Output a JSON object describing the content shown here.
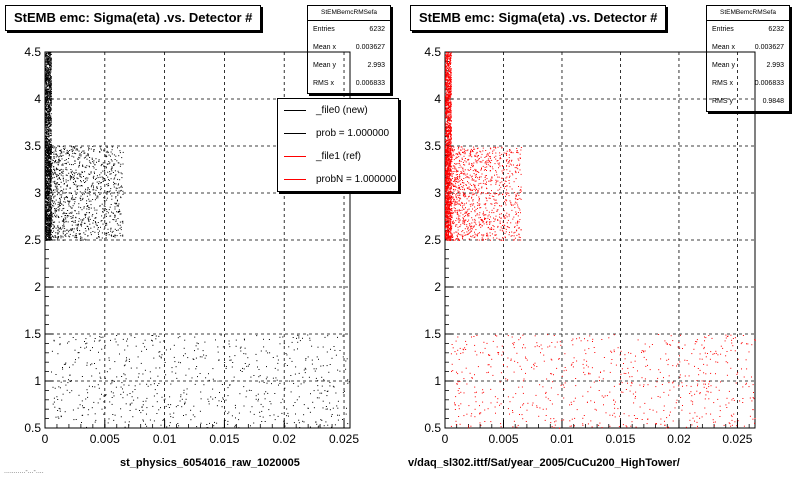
{
  "chart_data": [
    {
      "type": "scatter",
      "title": "StEMB emc: Sigma(eta) .vs. Detector #",
      "xlabel": "st_physics_6054016_raw_1020005",
      "ylabel": "",
      "xlim": [
        0,
        0.0255
      ],
      "ylim": [
        0.5,
        4.5
      ],
      "x_ticks": [
        "0",
        "0.005",
        "0.01",
        "0.015",
        "0.02",
        "0.025"
      ],
      "y_ticks": [
        "0.5",
        "1",
        "1.5",
        "2",
        "2.5",
        "3",
        "3.5",
        "4",
        "4.5"
      ],
      "grid": true,
      "marker_color": "#000000",
      "regions": [
        {
          "x_range": [
            0,
            0.0005
          ],
          "y_range": [
            2.5,
            4.5
          ],
          "density": "very high"
        },
        {
          "x_range": [
            0,
            0.0065
          ],
          "y_range": [
            2.5,
            3.5
          ],
          "density": "high"
        },
        {
          "x_range": [
            0.0005,
            0.0255
          ],
          "y_range": [
            0.5,
            1.5
          ],
          "density": "sparse"
        }
      ],
      "stats": {
        "title": "StEMBemcRMSefa",
        "rows": [
          {
            "label": "Entries",
            "value": "6232"
          },
          {
            "label": "Mean x",
            "value": "0.003627"
          },
          {
            "label": "Mean y",
            "value": "2.993"
          },
          {
            "label": "RMS x",
            "value": "0.006833"
          }
        ]
      },
      "legend": [
        {
          "label": "_file0 (new)",
          "color": "#000000"
        },
        {
          "label": "prob = 1.000000",
          "color": "#000000"
        },
        {
          "label": "_file1 (ref)",
          "color": "#ff0000"
        },
        {
          "label": "probN = 1.000000",
          "color": "#ff0000"
        }
      ]
    },
    {
      "type": "scatter",
      "title": "StEMB emc: Sigma(eta) .vs. Detector #",
      "xlabel": "v/daq_sl302.ittf/Sat/year_2005/CuCu200_HighTower/",
      "ylabel": "",
      "xlim": [
        0,
        0.0265
      ],
      "ylim": [
        0.5,
        4.5
      ],
      "x_ticks": [
        "0",
        "0.005",
        "0.01",
        "0.015",
        "0.02",
        "0.025"
      ],
      "y_ticks": [
        "0.5",
        "1",
        "1.5",
        "2",
        "2.5",
        "3",
        "3.5",
        "4",
        "4.5"
      ],
      "grid": true,
      "marker_color": "#ff0000",
      "regions": [
        {
          "x_range": [
            0,
            0.0005
          ],
          "y_range": [
            2.5,
            4.5
          ],
          "density": "very high"
        },
        {
          "x_range": [
            0,
            0.0065
          ],
          "y_range": [
            2.5,
            3.5
          ],
          "density": "high"
        },
        {
          "x_range": [
            0.0005,
            0.0265
          ],
          "y_range": [
            0.5,
            1.5
          ],
          "density": "sparse"
        }
      ],
      "stats": {
        "title": "StEMBemcRMSefa",
        "rows": [
          {
            "label": "Entries",
            "value": "6232"
          },
          {
            "label": "Mean x",
            "value": "0.003627"
          },
          {
            "label": "Mean y",
            "value": "2.993"
          },
          {
            "label": "RMS x",
            "value": "0.006833"
          },
          {
            "label": "RMS y",
            "value": "0.9848"
          }
        ]
      }
    }
  ],
  "footer": {
    "text": "...........-...-...."
  }
}
